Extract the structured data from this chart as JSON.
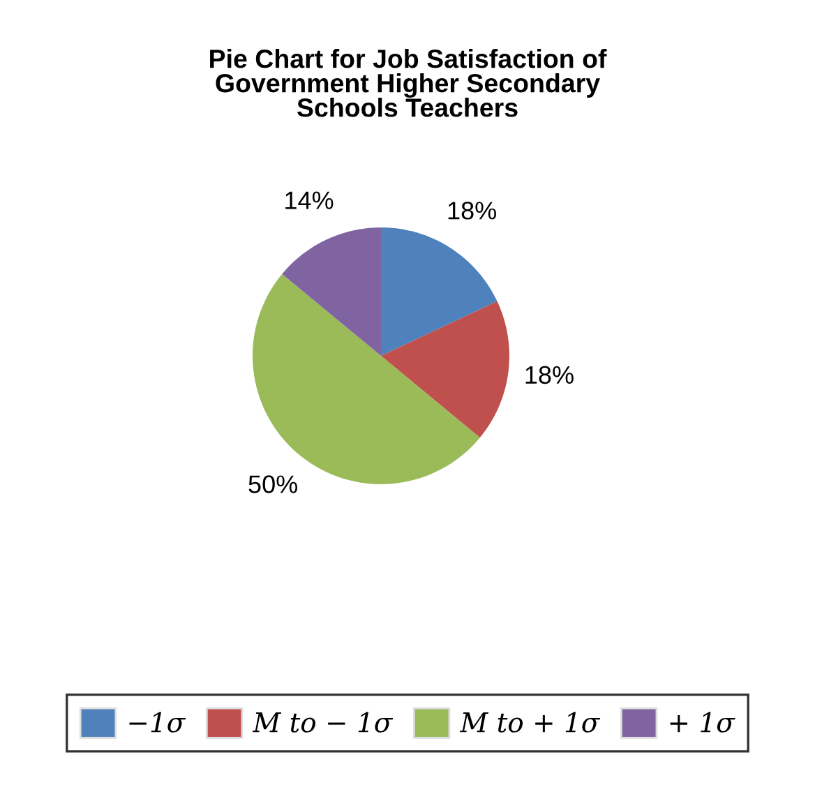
{
  "chart_data": {
    "type": "pie",
    "title": "Pie Chart for Job Satisfaction of\nGovernment Higher Secondary\nSchools Teachers",
    "categories": [
      "−1σ",
      "M to − 1σ",
      "M to + 1σ",
      "+ 1σ"
    ],
    "values": [
      18,
      18,
      50,
      14
    ],
    "colors": [
      "#4f81bd",
      "#c0504d",
      "#9bbb59",
      "#8064a2"
    ],
    "value_labels": [
      "18%",
      "18%",
      "50%",
      "14%"
    ],
    "legend": "bottom"
  }
}
